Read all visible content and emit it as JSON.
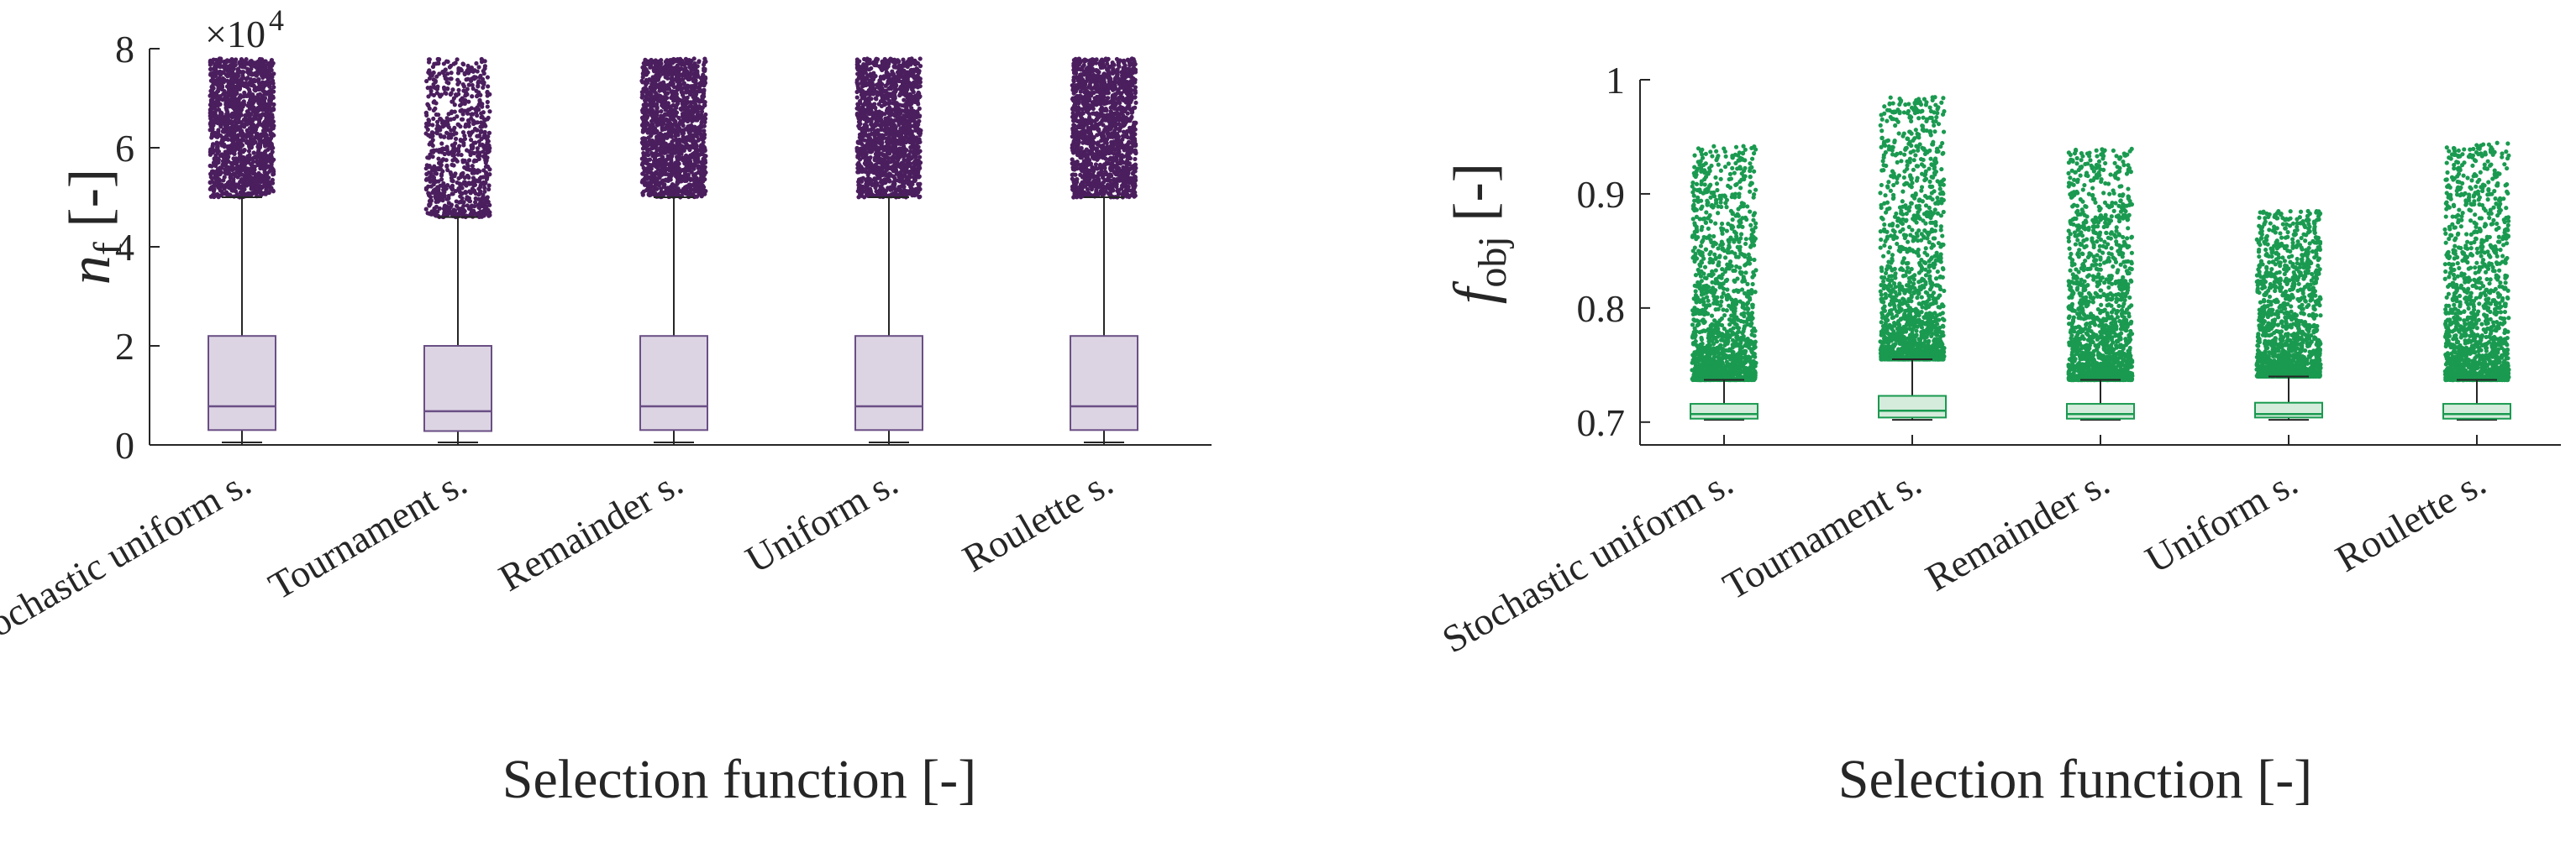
{
  "chart_data": [
    {
      "type": "box",
      "panel": "left",
      "xlabel": "Selection function [-]",
      "ylabel": {
        "main": "n",
        "sub": "f",
        "suffix": " [-]"
      },
      "y_exponent_label": "×10",
      "y_exponent_power": "4",
      "y_scale_factor": 10000,
      "ylim": [
        0,
        80000
      ],
      "yticks": [
        0,
        20000,
        40000,
        60000,
        80000
      ],
      "ytick_labels": [
        "0",
        "2",
        "4",
        "6",
        "8"
      ],
      "grid": false,
      "categories": [
        "Stochastic uniform s.",
        "Tournament s.",
        "Remainder s.",
        "Uniform s.",
        "Roulette s."
      ],
      "box_fill": "#dcd4e3",
      "box_edge": "#6a4f85",
      "outlier_color": "#4b1e5e",
      "whisker_color": "#262626",
      "boxes": [
        {
          "min": 500,
          "q1": 3000,
          "median": 7800,
          "q3": 22000,
          "whisker_high": 50000,
          "outlier_min": 50000,
          "outlier_max": 78000,
          "outlier_density": "dense"
        },
        {
          "min": 500,
          "q1": 2800,
          "median": 6800,
          "q3": 20000,
          "whisker_high": 46000,
          "outlier_min": 46000,
          "outlier_max": 78000,
          "outlier_density": "medium"
        },
        {
          "min": 500,
          "q1": 3000,
          "median": 7800,
          "q3": 22000,
          "whisker_high": 50000,
          "outlier_min": 50000,
          "outlier_max": 78000,
          "outlier_density": "dense"
        },
        {
          "min": 500,
          "q1": 3000,
          "median": 7800,
          "q3": 22000,
          "whisker_high": 50000,
          "outlier_min": 50000,
          "outlier_max": 78000,
          "outlier_density": "dense"
        },
        {
          "min": 500,
          "q1": 3000,
          "median": 7800,
          "q3": 22000,
          "whisker_high": 50000,
          "outlier_min": 50000,
          "outlier_max": 78000,
          "outlier_density": "dense"
        }
      ]
    },
    {
      "type": "box",
      "panel": "right",
      "xlabel": "Selection function [-]",
      "ylabel": {
        "main": "f",
        "sub": "obj",
        "suffix": " [-]"
      },
      "ylim": [
        0.68,
        1.0
      ],
      "yticks": [
        0.7,
        0.8,
        0.9,
        1.0
      ],
      "ytick_labels": [
        "0.7",
        "0.8",
        "0.9",
        "1"
      ],
      "grid": false,
      "categories": [
        "Stochastic uniform s.",
        "Tournament s.",
        "Remainder s.",
        "Uniform s.",
        "Roulette s."
      ],
      "box_fill": "#d5ecdc",
      "box_edge": "#1a9a50",
      "outlier_color": "#1a9a50",
      "whisker_color": "#262626",
      "boxes": [
        {
          "min": 0.702,
          "q1": 0.703,
          "median": 0.707,
          "q3": 0.716,
          "whisker_high": 0.737,
          "outlier_min": 0.737,
          "outlier_max": 0.942,
          "outlier_density": "dense"
        },
        {
          "min": 0.702,
          "q1": 0.704,
          "median": 0.71,
          "q3": 0.723,
          "whisker_high": 0.755,
          "outlier_min": 0.755,
          "outlier_max": 0.985,
          "outlier_density": "dense"
        },
        {
          "min": 0.702,
          "q1": 0.703,
          "median": 0.707,
          "q3": 0.716,
          "whisker_high": 0.737,
          "outlier_min": 0.737,
          "outlier_max": 0.94,
          "outlier_density": "dense"
        },
        {
          "min": 0.702,
          "q1": 0.704,
          "median": 0.707,
          "q3": 0.717,
          "whisker_high": 0.74,
          "outlier_min": 0.74,
          "outlier_max": 0.885,
          "outlier_density": "dense"
        },
        {
          "min": 0.702,
          "q1": 0.703,
          "median": 0.707,
          "q3": 0.716,
          "whisker_high": 0.737,
          "outlier_min": 0.737,
          "outlier_max": 0.945,
          "outlier_density": "dense"
        }
      ]
    }
  ]
}
